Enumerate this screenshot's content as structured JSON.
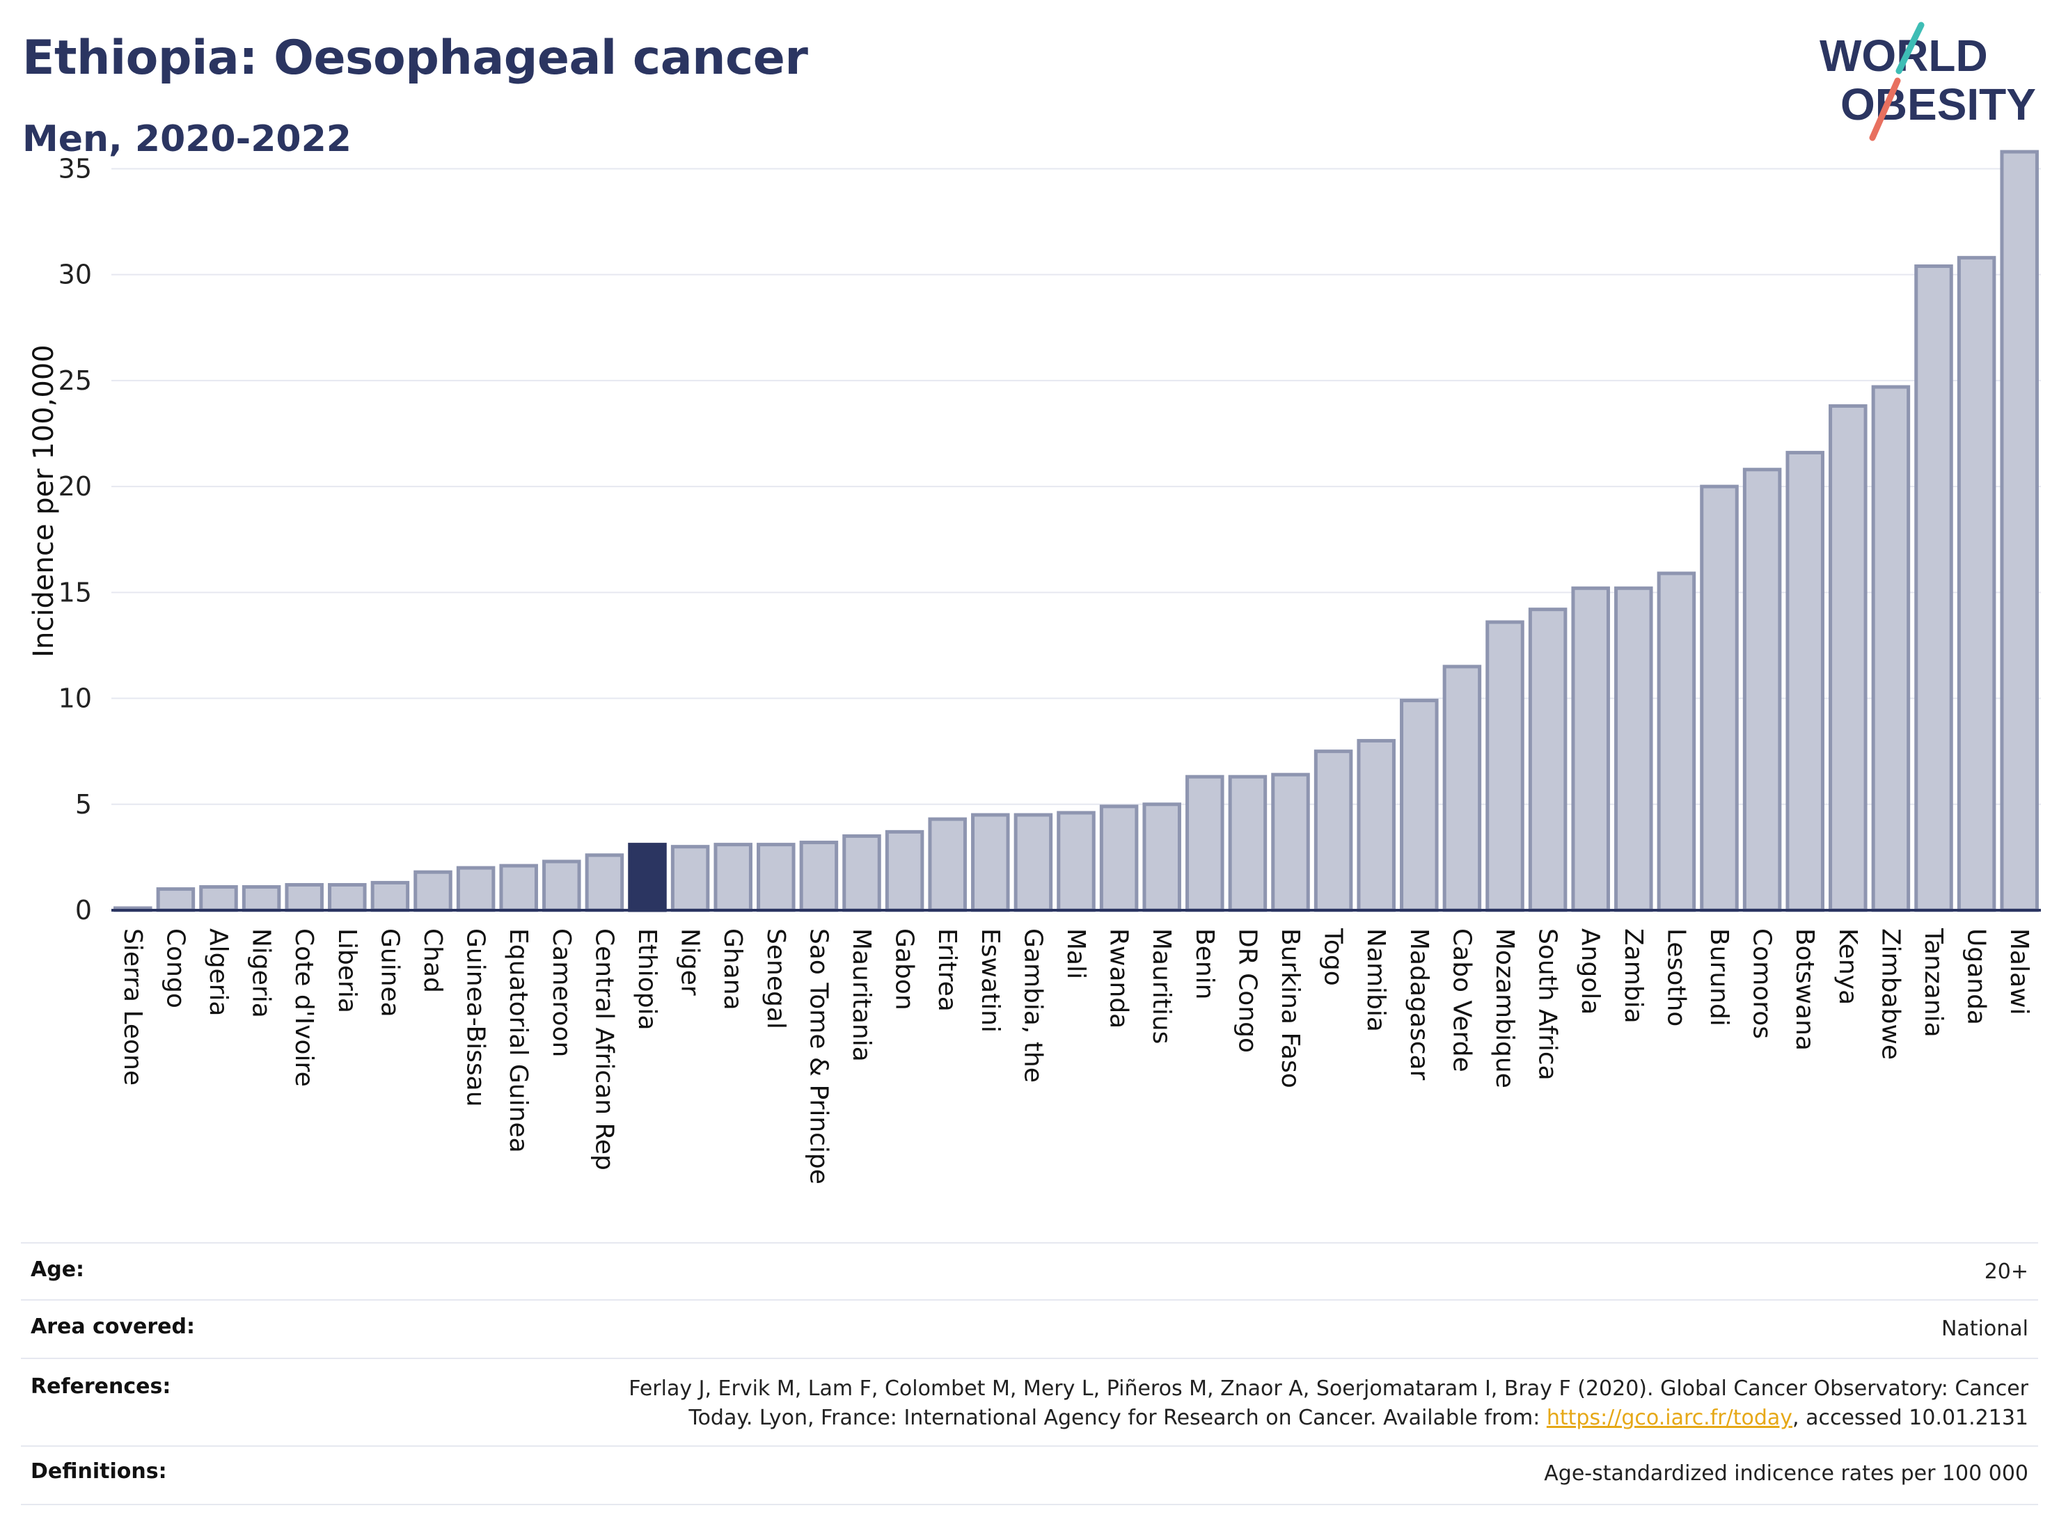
{
  "header": {
    "title": "Ethiopia: Oesophageal cancer",
    "subtitle": "Men, 2020-2022",
    "logo_line1": "WORLD",
    "logo_line2": "OBESITY"
  },
  "colors": {
    "highlight": "#2b3561",
    "bar_fill": "#c3c7d6",
    "bar_stroke": "#8e95b0",
    "grid": "#e6e8f0",
    "logo_teal": "#3ebdb5",
    "logo_coral": "#e8705f"
  },
  "chart_data": {
    "type": "bar",
    "ylabel": "Incidence per 100,000",
    "ylim": [
      0,
      36
    ],
    "yticks": [
      0,
      5,
      10,
      15,
      20,
      25,
      30,
      35
    ],
    "grid": true,
    "highlight_category": "Ethiopia",
    "categories": [
      "Sierra Leone",
      "Congo",
      "Algeria",
      "Nigeria",
      "Cote d'Ivoire",
      "Liberia",
      "Guinea",
      "Chad",
      "Guinea-Bissau",
      "Equatorial Guinea",
      "Cameroon",
      "Central African Rep",
      "Ethiopia",
      "Niger",
      "Ghana",
      "Senegal",
      "Sao Tome & Principe",
      "Mauritania",
      "Gabon",
      "Eritrea",
      "Eswatini",
      "Gambia, the",
      "Mali",
      "Rwanda",
      "Mauritius",
      "Benin",
      "DR Congo",
      "Burkina Faso",
      "Togo",
      "Namibia",
      "Madagascar",
      "Cabo Verde",
      "Mozambique",
      "South Africa",
      "Angola",
      "Zambia",
      "Lesotho",
      "Burundi",
      "Comoros",
      "Botswana",
      "Kenya",
      "Zimbabwe",
      "Tanzania",
      "Uganda",
      "Malawi"
    ],
    "values": [
      0.1,
      1.0,
      1.1,
      1.1,
      1.2,
      1.2,
      1.3,
      1.8,
      2.0,
      2.1,
      2.3,
      2.6,
      3.1,
      3.0,
      3.1,
      3.1,
      3.2,
      3.5,
      3.7,
      4.3,
      4.5,
      4.5,
      4.6,
      4.9,
      5.0,
      6.3,
      6.3,
      6.4,
      7.5,
      8.0,
      9.9,
      11.5,
      13.6,
      14.2,
      15.2,
      15.2,
      15.9,
      20.0,
      20.8,
      21.6,
      23.8,
      24.7,
      30.4,
      30.8,
      35.8
    ]
  },
  "meta": {
    "age_label": "Age:",
    "age_value": "20+",
    "area_label": "Area covered:",
    "area_value": "National",
    "references_label": "References:",
    "references_text_1": "Ferlay J, Ervik M, Lam F, Colombet M, Mery L, Piñeros M, Znaor A, Soerjomataram I, Bray F (2020). Global Cancer Observatory: Cancer",
    "references_text_2": "Today. Lyon, France: International Agency for Research on Cancer. Available from: ",
    "references_link": "https://gco.iarc.fr/today",
    "references_text_3": ", accessed 10.01.2131",
    "definitions_label": "Definitions:",
    "definitions_value": "Age-standardized indicence rates per 100 000"
  }
}
